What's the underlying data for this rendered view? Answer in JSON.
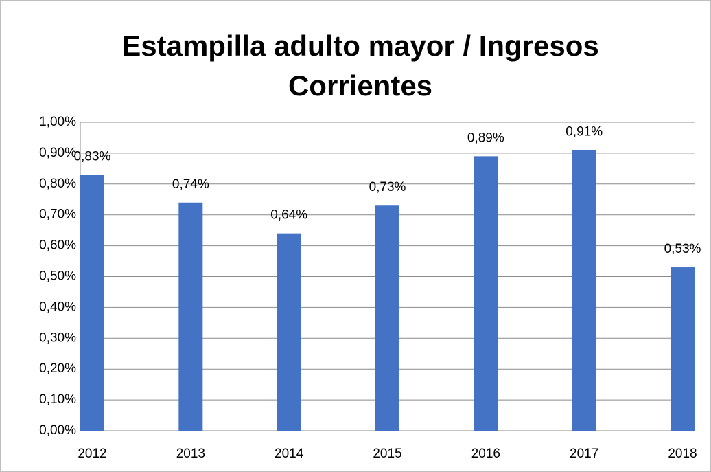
{
  "chart_data": {
    "type": "bar",
    "title": "Estampilla adulto mayor / Ingresos Corrientes",
    "categories": [
      "2012",
      "2013",
      "2014",
      "2015",
      "2016",
      "2017",
      "2018"
    ],
    "values": [
      0.83,
      0.74,
      0.64,
      0.73,
      0.89,
      0.91,
      0.53
    ],
    "value_labels": [
      "0,83%",
      "0,74%",
      "0,64%",
      "0,73%",
      "0,89%",
      "0,91%",
      "0,53%"
    ],
    "color": "#4472c4",
    "ylim": [
      0,
      1
    ],
    "yticks": [
      {
        "value": 0,
        "label": "0,00%"
      },
      {
        "value": 0.1,
        "label": "0,10%"
      },
      {
        "value": 0.2,
        "label": "0,20%"
      },
      {
        "value": 0.3,
        "label": "0,30%"
      },
      {
        "value": 0.4,
        "label": "0,40%"
      },
      {
        "value": 0.5,
        "label": "0,50%"
      },
      {
        "value": 0.6,
        "label": "0,60%"
      },
      {
        "value": 0.7,
        "label": "0,70%"
      },
      {
        "value": 0.8,
        "label": "0,80%"
      },
      {
        "value": 0.9,
        "label": "0,90%"
      },
      {
        "value": 1,
        "label": "1,00%"
      }
    ],
    "grid": true
  }
}
